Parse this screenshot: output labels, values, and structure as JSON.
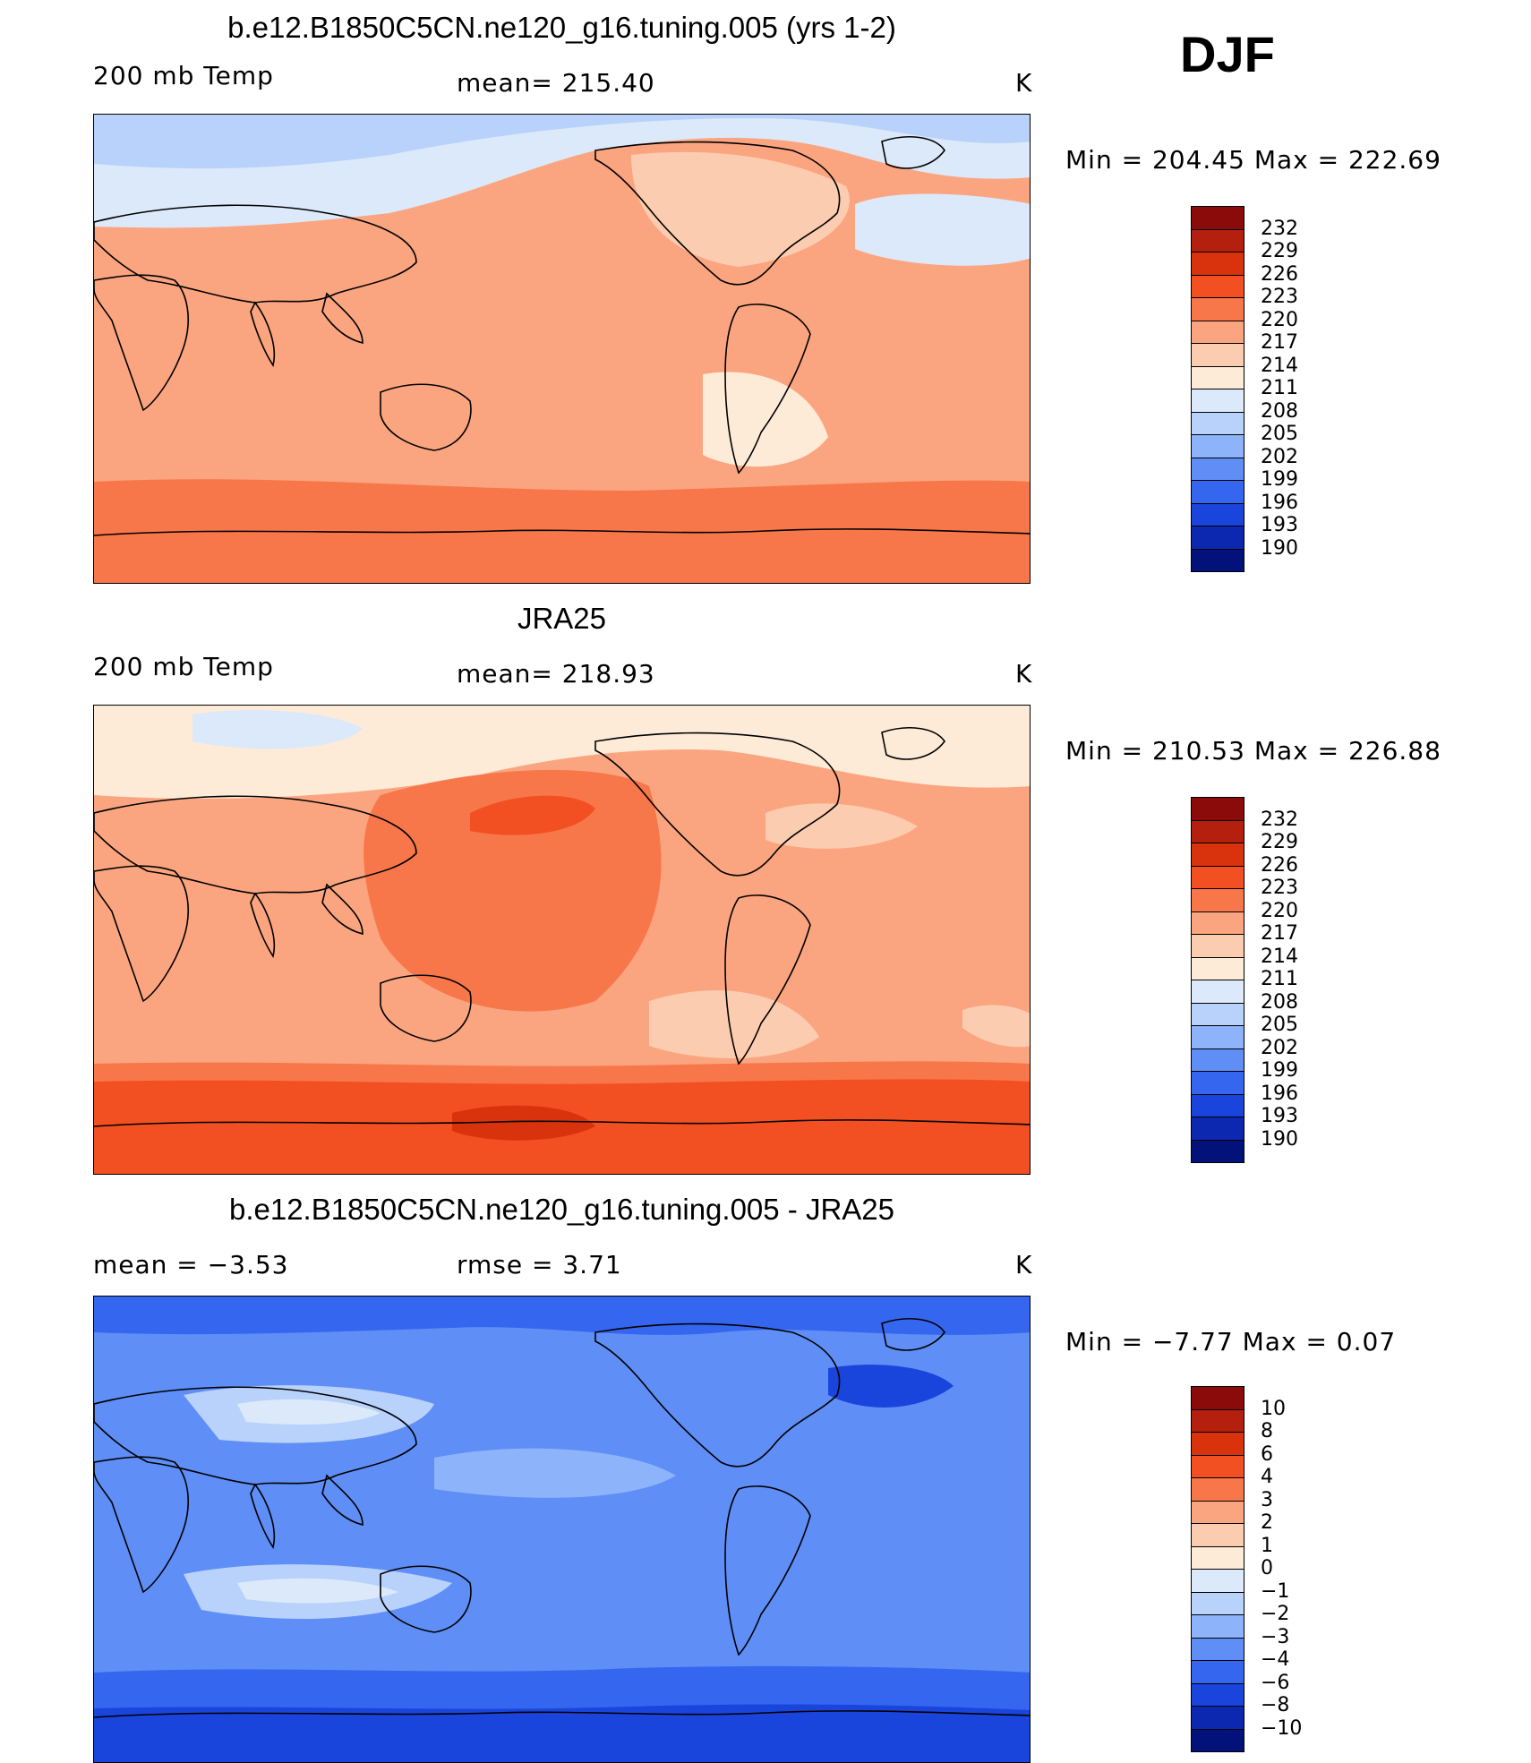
{
  "season": "DJF",
  "panels": [
    {
      "title": "b.e12.B1850C5CN.ne120_g16.tuning.005 (yrs 1-2)",
      "left_label": "200 mb Temp",
      "center_label": "mean= 215.40",
      "units": "K",
      "minmax": "Min = 204.45 Max = 222.69"
    },
    {
      "title": "JRA25",
      "left_label": "200 mb Temp",
      "center_label": "mean= 218.93",
      "units": "K",
      "minmax": "Min = 210.53 Max = 226.88"
    },
    {
      "title": "b.e12.B1850C5CN.ne120_g16.tuning.005 - JRA25",
      "left_label": "mean =   −3.53",
      "center_label": "rmse =    3.71",
      "units": "K",
      "minmax": "Min =   −7.77 Max =     0.07"
    }
  ],
  "colorbars": {
    "temp": {
      "ticks": [
        "232",
        "229",
        "226",
        "223",
        "220",
        "217",
        "214",
        "211",
        "208",
        "205",
        "202",
        "199",
        "196",
        "193",
        "190"
      ],
      "colors": [
        "#8b0a0a",
        "#b5200e",
        "#d9330e",
        "#f25022",
        "#f8774a",
        "#fba580",
        "#fcccb0",
        "#fdebd8",
        "#dce9fa",
        "#b8d2fb",
        "#8db4fa",
        "#5f8ef6",
        "#3566ef",
        "#1a45dc",
        "#0c27b0",
        "#02127a"
      ]
    },
    "diff": {
      "ticks": [
        "10",
        "8",
        "6",
        "4",
        "3",
        "2",
        "1",
        "0",
        "−1",
        "−2",
        "−3",
        "−4",
        "−6",
        "−8",
        "−10"
      ],
      "colors": [
        "#8b0a0a",
        "#b5200e",
        "#d9330e",
        "#f25022",
        "#f8774a",
        "#fba580",
        "#fcccb0",
        "#fdebd8",
        "#dce9fa",
        "#b8d2fb",
        "#8db4fa",
        "#5f8ef6",
        "#3566ef",
        "#1a45dc",
        "#0c27b0",
        "#02127a"
      ]
    }
  }
}
